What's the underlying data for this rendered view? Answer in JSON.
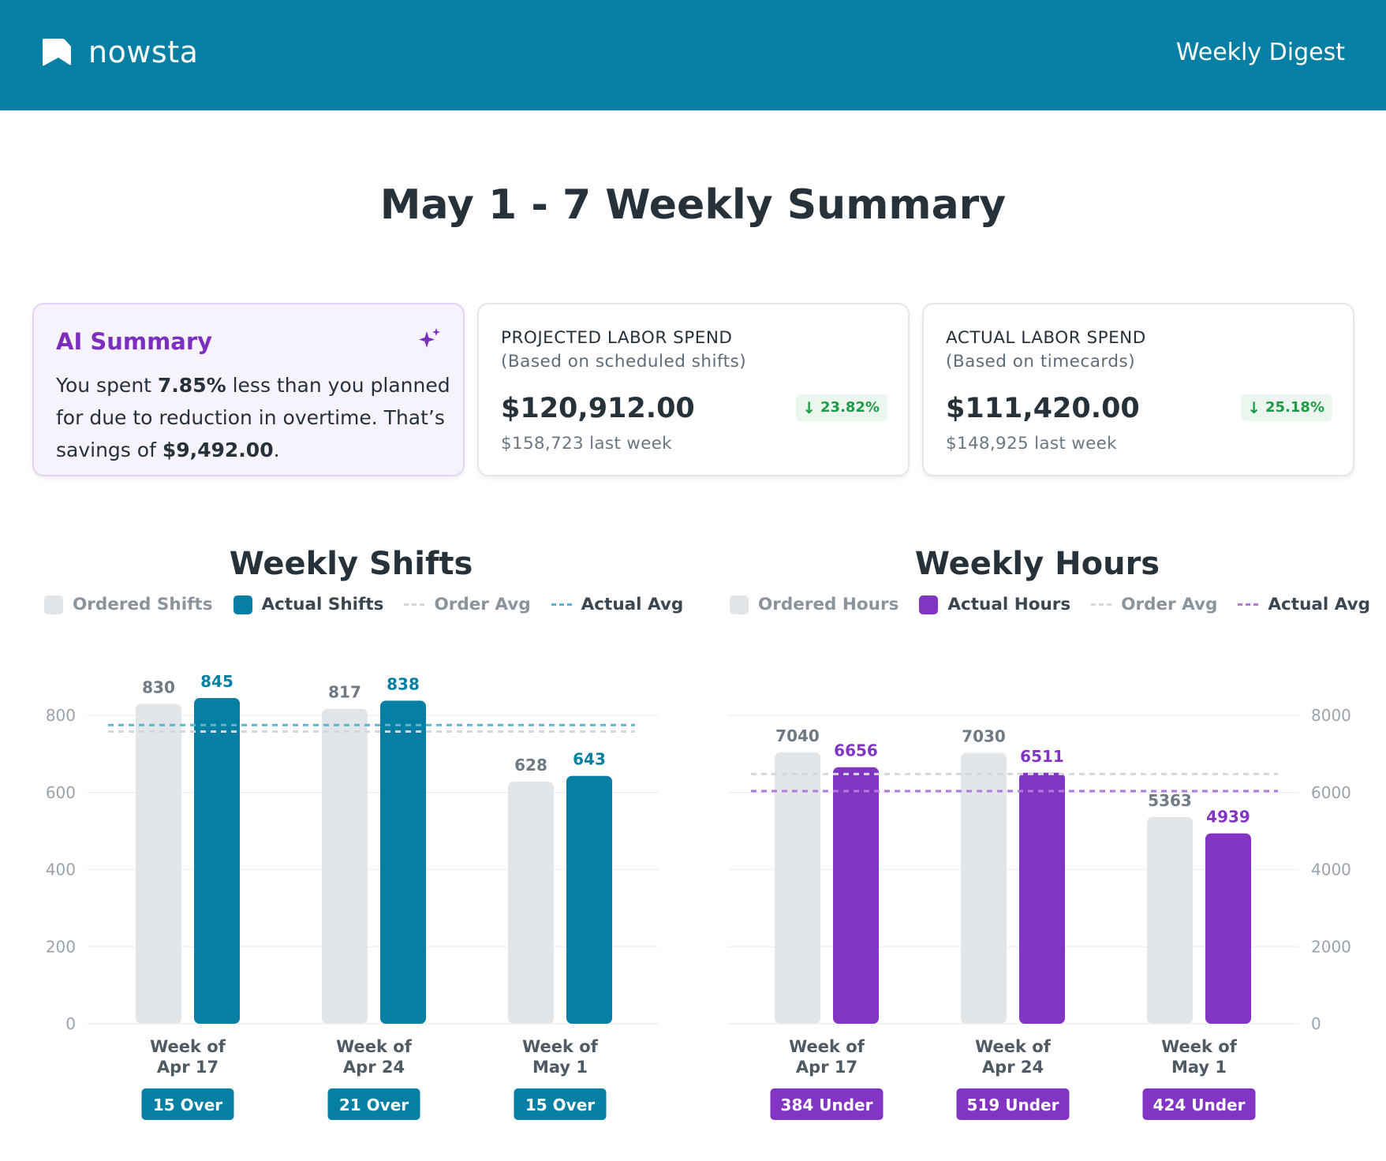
{
  "header": {
    "brand": "nowsta",
    "right_label": "Weekly Digest"
  },
  "page_title": "May 1 - 7 Weekly Summary",
  "ai_summary": {
    "title": "AI Summary",
    "text_1": "You spent ",
    "pct": "7.85%",
    "text_2": " less than you planned for due to reduction in overtime. That’s savings of ",
    "savings": "$9,492.00",
    "text_3": "."
  },
  "projected": {
    "title": "PROJECTED LABOR SPEND",
    "subtitle": "(Based on scheduled shifts)",
    "amount": "$120,912.00",
    "change": "23.82%",
    "last_week": "$158,723 last week"
  },
  "actual": {
    "title": "ACTUAL LABOR SPEND",
    "subtitle": "(Based on timecards)",
    "amount": "$111,420.00",
    "change": "25.18%",
    "last_week": "$148,925 last week"
  },
  "colors": {
    "header": "#0580a4",
    "teal": "#0580a4",
    "purple": "#8135c2",
    "ordered_gray": "#e2e6e9",
    "positive_green": "#1e9b48"
  },
  "chart_data": [
    {
      "type": "bar",
      "title": "Weekly Shifts",
      "legend": [
        "Ordered Shifts",
        "Actual Shifts",
        "Order Avg",
        "Actual Avg"
      ],
      "categories": [
        [
          "Week of",
          "Apr 17"
        ],
        [
          "Week of",
          "Apr 24"
        ],
        [
          "Week of",
          "May 1"
        ]
      ],
      "series": [
        {
          "name": "Ordered Shifts",
          "values": [
            830,
            817,
            628
          ]
        },
        {
          "name": "Actual Shifts",
          "values": [
            845,
            838,
            643
          ]
        }
      ],
      "order_avg": 758,
      "actual_avg": 775,
      "badges": [
        "15 Over",
        "21 Over",
        "15 Over"
      ],
      "ylim": [
        0,
        800
      ],
      "yticks": [
        0,
        200,
        400,
        600,
        800
      ],
      "axis_side": "left",
      "accent": "#0580a4",
      "grid": true
    },
    {
      "type": "bar",
      "title": "Weekly Hours",
      "legend": [
        "Ordered Hours",
        "Actual Hours",
        "Order Avg",
        "Actual Avg"
      ],
      "categories": [
        [
          "Week of",
          "Apr 17"
        ],
        [
          "Week of",
          "Apr 24"
        ],
        [
          "Week of",
          "May 1"
        ]
      ],
      "series": [
        {
          "name": "Ordered Hours",
          "values": [
            7040,
            7030,
            5363
          ]
        },
        {
          "name": "Actual Hours",
          "values": [
            6656,
            6511,
            4939
          ]
        }
      ],
      "order_avg": 6478,
      "actual_avg": 6035,
      "badges": [
        "384 Under",
        "519 Under",
        "424 Under"
      ],
      "ylim": [
        0,
        8000
      ],
      "yticks": [
        0,
        2000,
        4000,
        6000,
        8000
      ],
      "axis_side": "right",
      "accent": "#8135c2",
      "grid": true
    }
  ]
}
